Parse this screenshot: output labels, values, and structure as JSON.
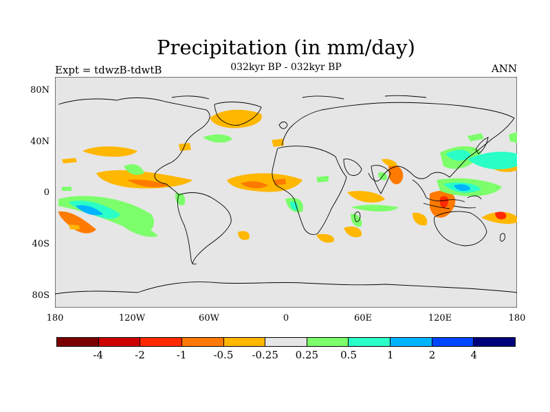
{
  "title": "Precipitation (in mm/day)",
  "subtitle": "032kyr BP - 032kyr BP",
  "left_label": "Expt = tdwzB-tdwtB",
  "right_label": "ANN",
  "lat_labels": [
    "80N",
    "40N",
    "0",
    "40S",
    "80S"
  ],
  "lon_labels": [
    "180",
    "120W",
    "60W",
    "0",
    "60E",
    "120E",
    "180"
  ],
  "colorbar": {
    "colors": [
      "#7a0000",
      "#cc0000",
      "#ff2a00",
      "#ff7a00",
      "#ffb700",
      "#e6e6e6",
      "#7dff6b",
      "#2affc8",
      "#00b4ff",
      "#0046ff",
      "#00007a"
    ],
    "labels": [
      "-4",
      "-2",
      "-1",
      "-0.5",
      "-0.25",
      "0.25",
      "0.5",
      "1",
      "2",
      "4"
    ]
  },
  "map": {
    "background": "#e6e6e6",
    "coast_color": "#000000"
  }
}
